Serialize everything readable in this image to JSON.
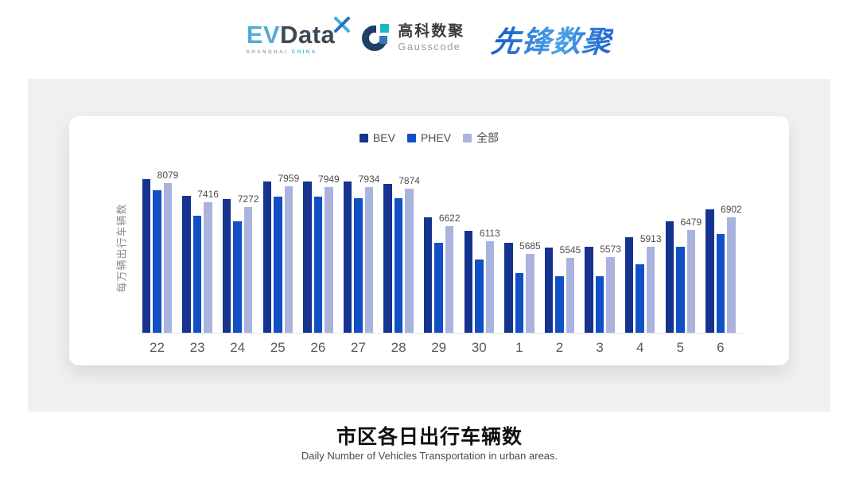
{
  "header": {
    "evdata": {
      "ev": "EV",
      "data": "Data",
      "sub_left": "SHANGHAI",
      "sub_right": "CHINA"
    },
    "gausscode": {
      "cn_name": "高科数聚",
      "en_name": "Gausscode"
    },
    "xianfeng": {
      "brand": "先锋数聚"
    }
  },
  "footer": {
    "title": "市区各日出行车辆数",
    "subtitle": "Daily Number of Vehicles Transportation in urban areas."
  },
  "chart_data": {
    "type": "bar",
    "title": "市区各日出行车辆数",
    "subtitle": "Daily Number of Vehicles Transportation in urban areas.",
    "ylabel": "每万辆出行车辆数",
    "xlabel": "",
    "categories": [
      "22",
      "23",
      "24",
      "25",
      "26",
      "27",
      "28",
      "29",
      "30",
      "1",
      "2",
      "3",
      "4",
      "5",
      "6"
    ],
    "series": [
      {
        "name": "BEV",
        "color": "#15338F",
        "values": [
          8210,
          7655,
          7540,
          8140,
          8135,
          8130,
          8045,
          6925,
          6445,
          6040,
          5885,
          5925,
          6235,
          6785,
          7195
        ],
        "values_estimated": true,
        "labeled": false
      },
      {
        "name": "PHEV",
        "color": "#1150C4",
        "values": [
          7835,
          6975,
          6775,
          7625,
          7605,
          7570,
          7555,
          6060,
          5495,
          5025,
          4915,
          4920,
          5315,
          5910,
          6360
        ],
        "values_estimated": true,
        "labeled": false
      },
      {
        "name": "全部",
        "color": "#AAB3DE",
        "values": [
          8079,
          7416,
          7272,
          7959,
          7949,
          7934,
          7874,
          6622,
          6113,
          5685,
          5545,
          5573,
          5913,
          6479,
          6902
        ],
        "values_estimated": false,
        "labeled": true
      }
    ],
    "data_labels": [
      "8079",
      "7416",
      "7272",
      "7959",
      "7949",
      "7934",
      "7874",
      "6622",
      "6113",
      "5685",
      "5545",
      "5573",
      "5913",
      "6479",
      "6902"
    ],
    "value_axis": {
      "min": 3000,
      "max": 8400,
      "ticks_shown": false
    },
    "grid": false,
    "legend_position": "top-center"
  },
  "colors": {
    "bev": "#15338F",
    "phev": "#1150C4",
    "all": "#AAB3DE",
    "panel_bg": "#f0f0f0",
    "axis_line": "#e3e3e3"
  }
}
